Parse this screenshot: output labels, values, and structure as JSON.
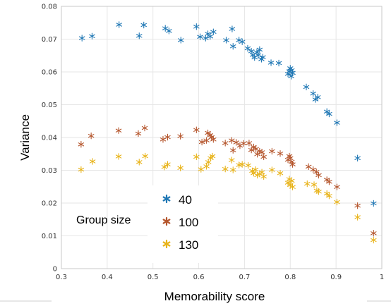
{
  "chart_data": {
    "type": "scatter",
    "title": "",
    "xlabel": "Memorability score",
    "ylabel": "Variance",
    "xlim": [
      0.3,
      1
    ],
    "ylim": [
      0,
      0.08
    ],
    "xticks": [
      "0.3",
      "0.4",
      "0.5",
      "0.6",
      "0.7",
      "0.8",
      "0.9",
      "1"
    ],
    "yticks": [
      "0",
      "0.01",
      "0.02",
      "0.03",
      "0.04",
      "0.05",
      "0.06",
      "0.07",
      "0.08"
    ],
    "grid": true,
    "marker": "asterisk",
    "legend": {
      "title": "Group size",
      "position": "bottom-left"
    },
    "series": [
      {
        "name": "40",
        "color": "#1f77b4",
        "points": [
          [
            0.345,
            0.0703
          ],
          [
            0.367,
            0.0709
          ],
          [
            0.426,
            0.0744
          ],
          [
            0.47,
            0.071
          ],
          [
            0.48,
            0.0743
          ],
          [
            0.527,
            0.0733
          ],
          [
            0.535,
            0.0725
          ],
          [
            0.561,
            0.0697
          ],
          [
            0.595,
            0.0738
          ],
          [
            0.603,
            0.0707
          ],
          [
            0.615,
            0.0703
          ],
          [
            0.62,
            0.0716
          ],
          [
            0.625,
            0.0708
          ],
          [
            0.632,
            0.0722
          ],
          [
            0.66,
            0.0697
          ],
          [
            0.673,
            0.0731
          ],
          [
            0.675,
            0.0678
          ],
          [
            0.688,
            0.0697
          ],
          [
            0.695,
            0.0692
          ],
          [
            0.707,
            0.0672
          ],
          [
            0.715,
            0.0663
          ],
          [
            0.718,
            0.0652
          ],
          [
            0.722,
            0.0644
          ],
          [
            0.727,
            0.066
          ],
          [
            0.73,
            0.0651
          ],
          [
            0.733,
            0.0668
          ],
          [
            0.737,
            0.0639
          ],
          [
            0.74,
            0.0645
          ],
          [
            0.758,
            0.0628
          ],
          [
            0.775,
            0.0627
          ],
          [
            0.795,
            0.0594
          ],
          [
            0.798,
            0.0602
          ],
          [
            0.8,
            0.0611
          ],
          [
            0.802,
            0.0587
          ],
          [
            0.803,
            0.0605
          ],
          [
            0.805,
            0.0597
          ],
          [
            0.835,
            0.0554
          ],
          [
            0.85,
            0.0534
          ],
          [
            0.855,
            0.0516
          ],
          [
            0.86,
            0.0523
          ],
          [
            0.88,
            0.0479
          ],
          [
            0.885,
            0.0472
          ],
          [
            0.902,
            0.0445
          ],
          [
            0.947,
            0.0337
          ],
          [
            0.982,
            0.0199
          ]
        ]
      },
      {
        "name": "100",
        "color": "#b5562d",
        "points": [
          [
            0.343,
            0.0379
          ],
          [
            0.365,
            0.0405
          ],
          [
            0.425,
            0.0421
          ],
          [
            0.468,
            0.0412
          ],
          [
            0.482,
            0.0429
          ],
          [
            0.522,
            0.0394
          ],
          [
            0.532,
            0.0401
          ],
          [
            0.56,
            0.0404
          ],
          [
            0.595,
            0.0423
          ],
          [
            0.607,
            0.0386
          ],
          [
            0.617,
            0.0391
          ],
          [
            0.62,
            0.0414
          ],
          [
            0.625,
            0.0407
          ],
          [
            0.628,
            0.0401
          ],
          [
            0.632,
            0.0394
          ],
          [
            0.658,
            0.0383
          ],
          [
            0.672,
            0.0391
          ],
          [
            0.675,
            0.0361
          ],
          [
            0.682,
            0.0385
          ],
          [
            0.69,
            0.0375
          ],
          [
            0.698,
            0.0382
          ],
          [
            0.71,
            0.0383
          ],
          [
            0.715,
            0.0362
          ],
          [
            0.72,
            0.0371
          ],
          [
            0.725,
            0.0365
          ],
          [
            0.728,
            0.0349
          ],
          [
            0.733,
            0.0358
          ],
          [
            0.738,
            0.0355
          ],
          [
            0.742,
            0.0341
          ],
          [
            0.76,
            0.0358
          ],
          [
            0.778,
            0.0351
          ],
          [
            0.795,
            0.0332
          ],
          [
            0.798,
            0.0343
          ],
          [
            0.8,
            0.0337
          ],
          [
            0.803,
            0.0326
          ],
          [
            0.805,
            0.0318
          ],
          [
            0.84,
            0.0311
          ],
          [
            0.85,
            0.0302
          ],
          [
            0.857,
            0.0295
          ],
          [
            0.862,
            0.0285
          ],
          [
            0.88,
            0.0271
          ],
          [
            0.885,
            0.0265
          ],
          [
            0.902,
            0.0249
          ],
          [
            0.947,
            0.0192
          ],
          [
            0.982,
            0.0108
          ]
        ]
      },
      {
        "name": "130",
        "color": "#e8b319",
        "points": [
          [
            0.343,
            0.0302
          ],
          [
            0.368,
            0.0327
          ],
          [
            0.425,
            0.0342
          ],
          [
            0.47,
            0.0325
          ],
          [
            0.483,
            0.0343
          ],
          [
            0.525,
            0.031
          ],
          [
            0.532,
            0.0318
          ],
          [
            0.56,
            0.0307
          ],
          [
            0.595,
            0.0341
          ],
          [
            0.605,
            0.0303
          ],
          [
            0.617,
            0.0312
          ],
          [
            0.621,
            0.0325
          ],
          [
            0.626,
            0.0337
          ],
          [
            0.63,
            0.0343
          ],
          [
            0.658,
            0.0304
          ],
          [
            0.672,
            0.0331
          ],
          [
            0.675,
            0.0301
          ],
          [
            0.688,
            0.0316
          ],
          [
            0.695,
            0.0318
          ],
          [
            0.708,
            0.0315
          ],
          [
            0.717,
            0.0298
          ],
          [
            0.72,
            0.0291
          ],
          [
            0.724,
            0.0302
          ],
          [
            0.728,
            0.0285
          ],
          [
            0.733,
            0.0289
          ],
          [
            0.738,
            0.0294
          ],
          [
            0.742,
            0.0281
          ],
          [
            0.76,
            0.0301
          ],
          [
            0.778,
            0.0291
          ],
          [
            0.795,
            0.0262
          ],
          [
            0.798,
            0.0273
          ],
          [
            0.8,
            0.0255
          ],
          [
            0.803,
            0.0268
          ],
          [
            0.805,
            0.0249
          ],
          [
            0.837,
            0.0259
          ],
          [
            0.852,
            0.0256
          ],
          [
            0.858,
            0.0238
          ],
          [
            0.862,
            0.0235
          ],
          [
            0.88,
            0.0229
          ],
          [
            0.885,
            0.0222
          ],
          [
            0.902,
            0.0203
          ],
          [
            0.947,
            0.0157
          ],
          [
            0.982,
            0.0087
          ]
        ]
      }
    ]
  }
}
